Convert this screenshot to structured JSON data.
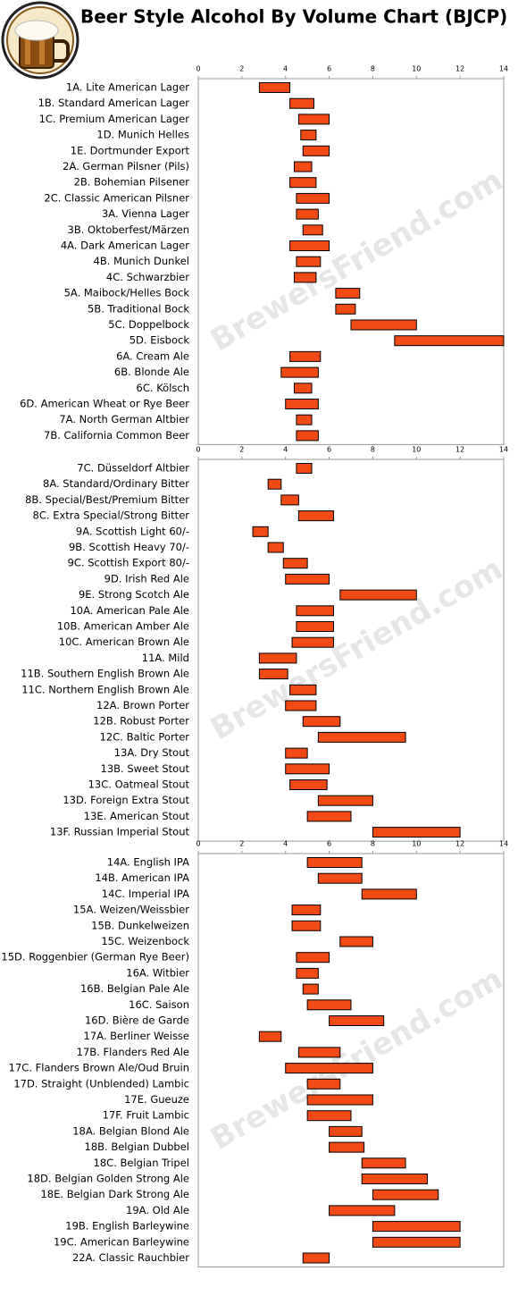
{
  "title": "Beer Style Alcohol By Volume Chart (BJCP)",
  "watermark": "BrewersFriend.com",
  "chart_data": [
    {
      "type": "range_bar",
      "color": "#f24a14",
      "xlim": [
        0,
        14
      ],
      "xticks": [
        0,
        2,
        4,
        6,
        8,
        10,
        12,
        14
      ],
      "categories": [
        "1A. Lite American Lager",
        "1B. Standard American Lager",
        "1C. Premium American Lager",
        "1D. Munich Helles",
        "1E. Dortmunder Export",
        "2A. German Pilsner (Pils)",
        "2B. Bohemian Pilsener",
        "2C. Classic American Pilsner",
        "3A. Vienna Lager",
        "3B. Oktoberfest/Märzen",
        "4A. Dark American Lager",
        "4B. Munich Dunkel",
        "4C. Schwarzbier",
        "5A. Maibock/Helles Bock",
        "5B. Traditional Bock",
        "5C. Doppelbock",
        "5D. Eisbock",
        "6A. Cream Ale",
        "6B. Blonde Ale",
        "6C. Kölsch",
        "6D. American Wheat or Rye Beer",
        "7A. North German Altbier",
        "7B. California Common Beer"
      ],
      "low": [
        2.8,
        4.2,
        4.6,
        4.7,
        4.8,
        4.4,
        4.2,
        4.5,
        4.5,
        4.8,
        4.2,
        4.5,
        4.4,
        6.3,
        6.3,
        7,
        9,
        4.2,
        3.8,
        4.4,
        4,
        4.5,
        4.5
      ],
      "high": [
        4.2,
        5.3,
        6,
        5.4,
        6,
        5.2,
        5.4,
        6,
        5.5,
        5.7,
        6,
        5.6,
        5.4,
        7.4,
        7.2,
        10,
        14,
        5.6,
        5.5,
        5.2,
        5.5,
        5.2,
        5.5
      ]
    },
    {
      "type": "range_bar",
      "color": "#f24a14",
      "xlim": [
        0,
        14
      ],
      "xticks": [
        0,
        2,
        4,
        6,
        8,
        10,
        12,
        14
      ],
      "categories": [
        "7C. Düsseldorf Altbier",
        "8A. Standard/Ordinary Bitter",
        "8B. Special/Best/Premium Bitter",
        "8C. Extra Special/Strong Bitter",
        "9A. Scottish Light 60/-",
        "9B. Scottish Heavy 70/-",
        "9C. Scottish Export 80/-",
        "9D. Irish Red Ale",
        "9E. Strong Scotch Ale",
        "10A. American Pale Ale",
        "10B. American Amber Ale",
        "10C. American Brown Ale",
        "11A. Mild",
        "11B. Southern English Brown Ale",
        "11C. Northern English Brown Ale",
        "12A. Brown Porter",
        "12B. Robust Porter",
        "12C. Baltic Porter",
        "13A. Dry Stout",
        "13B. Sweet Stout",
        "13C. Oatmeal Stout",
        "13D. Foreign Extra Stout",
        "13E. American Stout",
        "13F. Russian Imperial Stout"
      ],
      "low": [
        4.5,
        3.2,
        3.8,
        4.6,
        2.5,
        3.2,
        3.9,
        4,
        6.5,
        4.5,
        4.5,
        4.3,
        2.8,
        2.8,
        4.2,
        4,
        4.8,
        5.5,
        4,
        4,
        4.2,
        5.5,
        5,
        8
      ],
      "high": [
        5.2,
        3.8,
        4.6,
        6.2,
        3.2,
        3.9,
        5,
        6,
        10,
        6.2,
        6.2,
        6.2,
        4.5,
        4.1,
        5.4,
        5.4,
        6.5,
        9.5,
        5,
        6,
        5.9,
        8,
        7,
        12
      ]
    },
    {
      "type": "range_bar",
      "color": "#f24a14",
      "xlim": [
        0,
        14
      ],
      "xticks": [
        0,
        2,
        4,
        6,
        8,
        10,
        12,
        14
      ],
      "categories": [
        "14A. English IPA",
        "14B. American IPA",
        "14C. Imperial IPA",
        "15A. Weizen/Weissbier",
        "15B. Dunkelweizen",
        "15C. Weizenbock",
        "15D. Roggenbier (German Rye Beer)",
        "16A. Witbier",
        "16B. Belgian Pale Ale",
        "16C. Saison",
        "16D. Bière de Garde",
        "17A. Berliner Weisse",
        "17B. Flanders Red Ale",
        "17C. Flanders Brown Ale/Oud Bruin",
        "17D. Straight (Unblended) Lambic",
        "17E. Gueuze",
        "17F. Fruit Lambic",
        "18A. Belgian Blond Ale",
        "18B. Belgian Dubbel",
        "18C. Belgian Tripel",
        "18D. Belgian Golden Strong Ale",
        "18E. Belgian Dark Strong Ale",
        "19A. Old Ale",
        "19B. English Barleywine",
        "19C. American Barleywine",
        "22A. Classic Rauchbier"
      ],
      "low": [
        5,
        5.5,
        7.5,
        4.3,
        4.3,
        6.5,
        4.5,
        4.5,
        4.8,
        5,
        6,
        2.8,
        4.6,
        4,
        5,
        5,
        5,
        6,
        6,
        7.5,
        7.5,
        8,
        6,
        8,
        8,
        4.8
      ],
      "high": [
        7.5,
        7.5,
        10,
        5.6,
        5.6,
        8,
        6,
        5.5,
        5.5,
        7,
        8.5,
        3.8,
        6.5,
        8,
        6.5,
        8,
        7,
        7.5,
        7.6,
        9.5,
        10.5,
        11,
        9,
        12,
        12,
        6
      ]
    }
  ]
}
